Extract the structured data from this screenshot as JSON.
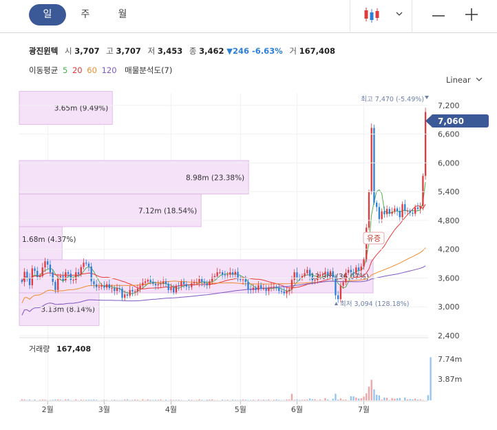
{
  "tabs": [
    {
      "label": "일",
      "active": true
    },
    {
      "label": "주",
      "active": false
    },
    {
      "label": "월",
      "active": false
    }
  ],
  "stock": {
    "name": "광진윈텍",
    "open_label": "시",
    "open": "3,707",
    "high_label": "고",
    "high": "3,707",
    "low_label": "저",
    "low": "3,453",
    "close_label": "종",
    "close": "3,462",
    "change": "▼246 -6.63%",
    "volume_label": "거",
    "volume": "167,408"
  },
  "indicators": {
    "ma_label": "이동평균",
    "ma_periods": [
      {
        "label": "5",
        "color": "#4caf50"
      },
      {
        "label": "20",
        "color": "#e53935"
      },
      {
        "label": "60",
        "color": "#f08c2c"
      },
      {
        "label": "120",
        "color": "#7e57c2"
      }
    ],
    "volume_profile_label": "매물분석도(7)"
  },
  "scale_mode": "Linear",
  "colors": {
    "up": "#e03a3e",
    "down": "#2c7fd6",
    "accent": "#3c5997",
    "profile": "#f5e1f8"
  },
  "chart_data": {
    "type": "candlestick",
    "y_ticks": [
      "7,200",
      "6,600",
      "6,000",
      "5,400",
      "4,800",
      "4,200",
      "3,600",
      "3,000",
      "2,400"
    ],
    "y_tick_values": [
      7200,
      6600,
      6000,
      5400,
      4800,
      4200,
      3600,
      3000,
      2400
    ],
    "ylim": [
      2400,
      7600
    ],
    "x_ticks": [
      "2월",
      "3월",
      "4월",
      "5월",
      "6월",
      "7월"
    ],
    "current_price": "7,060",
    "high_annotation": "최고 7,470 (-5.49%)",
    "low_annotation": "최저 3,094 (128.18%)",
    "event_label": "유증",
    "volume_title": "거래량",
    "volume_value": "167,408",
    "volume_ticks": [
      "7.74m",
      "3.87m"
    ],
    "volume_profile": [
      {
        "label": "3.65m (9.49%)",
        "low": 6800,
        "high": 7490,
        "pct": 9.49
      },
      {
        "label": "8.98m (23.38%)",
        "low": 5350,
        "high": 6050,
        "pct": 23.38
      },
      {
        "label": "7.12m (18.54%)",
        "low": 4670,
        "high": 5350,
        "pct": 18.54
      },
      {
        "label": "1.68m (4.37%)",
        "low": 3980,
        "high": 4670,
        "pct": 4.37
      },
      {
        "label": "13.9m (36.07%)",
        "low": 3290,
        "high": 3980,
        "pct": 36.07
      },
      {
        "label": "3.13m (8.14%)",
        "low": 2610,
        "high": 3290,
        "pct": 8.14
      }
    ],
    "price_series": {
      "name": "종가",
      "closes": [
        3520,
        3730,
        3610,
        3450,
        3800,
        3750,
        3620,
        3640,
        3820,
        3950,
        3880,
        3720,
        3520,
        3350,
        3610,
        3640,
        3550,
        3720,
        3690,
        3560,
        3560,
        3720,
        3680,
        3830,
        3920,
        3900,
        3840,
        3530,
        3470,
        3410,
        3420,
        3450,
        3400,
        3470,
        3390,
        3390,
        3330,
        3390,
        3380,
        3190,
        3260,
        3230,
        3350,
        3320,
        3320,
        3380,
        3440,
        3500,
        3530,
        3560,
        3520,
        3480,
        3450,
        3470,
        3490,
        3530,
        3480,
        3350,
        3400,
        3300,
        3440,
        3430,
        3520,
        3470,
        3420,
        3410,
        3490,
        3510,
        3510,
        3580,
        3520,
        3490,
        3450,
        3530,
        3620,
        3640,
        3720,
        3720,
        3670,
        3660,
        3670,
        3720,
        3670,
        3730,
        3580,
        3560,
        3570,
        3520,
        3360,
        3350,
        3400,
        3350,
        3450,
        3380,
        3380,
        3330,
        3400,
        3410,
        3420,
        3400,
        3330,
        3320,
        3280,
        3330,
        3360,
        3560,
        3720,
        3610,
        3600,
        3640,
        3700,
        3770,
        3640,
        3550,
        3560,
        3640,
        3670,
        3680,
        3730,
        3660,
        3740,
        3620,
        3240,
        3160,
        3440,
        3510,
        3710,
        3770,
        3720,
        3700,
        3820,
        3760,
        3840,
        3990,
        4650,
        5390,
        6730,
        5170,
        5080,
        4830,
        4990,
        4930,
        5040,
        4940,
        4980,
        5050,
        5000,
        4870,
        5140,
        5000,
        5000,
        4960,
        4940,
        5070,
        5040,
        5100,
        5730,
        7060
      ]
    },
    "volume_series": {
      "name": "거래량",
      "values": [
        0.21,
        0.18,
        0.08,
        0.17,
        0.03,
        0.16,
        0.02,
        0.11,
        0.16,
        0.13,
        0.04,
        0.07,
        0.11,
        0.17,
        0.19,
        0.12,
        0.05,
        0.21,
        0.21,
        0.05,
        0.05,
        0.18,
        0.04,
        0.13,
        0.09,
        0.11,
        0.12,
        0.11,
        0.17,
        0.1,
        0.01,
        0.05,
        0.12,
        0.08,
        0.01,
        0.1,
        0.13,
        0.07,
        0.06,
        0.07,
        0.17,
        0.2,
        0.06,
        0.1,
        0.17,
        0.12,
        0.04,
        0.21,
        0.05,
        0.18,
        0.12,
        0.09,
        0.11,
        0.11,
        0.18,
        0.04,
        0.13,
        0.04,
        0.14,
        0.09,
        0.09,
        0.13,
        0.07,
        0.04,
        0.01,
        0.14,
        0.11,
        0.05,
        0.09,
        0.19,
        0.11,
        0.03,
        0.13,
        0.15,
        0.19,
        0.05,
        0.05,
        0.01,
        0.14,
        0.07,
        0.13,
        0.04,
        0.16,
        0.1,
        0.08,
        0.09,
        0.19,
        0.13,
        0.07,
        0.08,
        0.13,
        0.05,
        0.18,
        0.08,
        0.13,
        0.09,
        0.18,
        0.03,
        0.12,
        0.18,
        0.11,
        0.05,
        0.06,
        0.19,
        0.17,
        1.3,
        0.11,
        0.19,
        0.08,
        0.11,
        0.14,
        0.16,
        0.38,
        0.22,
        0.22,
        0.05,
        0.18,
        0.03,
        0.44,
        0.16,
        0.02,
        0.34,
        1.3,
        0.15,
        0.38,
        0.15,
        0.17,
        0.03,
        0.81,
        0.78,
        0.55,
        0.35,
        0.42,
        0.75,
        1.4,
        2.72,
        4.05,
        2.16,
        1.1,
        0.98,
        0.16,
        0.54,
        0.52,
        0.07,
        0.44,
        0.33,
        0.4,
        0.48,
        0.02,
        0.56,
        0.19,
        0.25,
        0.2,
        0.36,
        0.15,
        0.21,
        0.08,
        0.01,
        1.03,
        8.5
      ]
    }
  }
}
